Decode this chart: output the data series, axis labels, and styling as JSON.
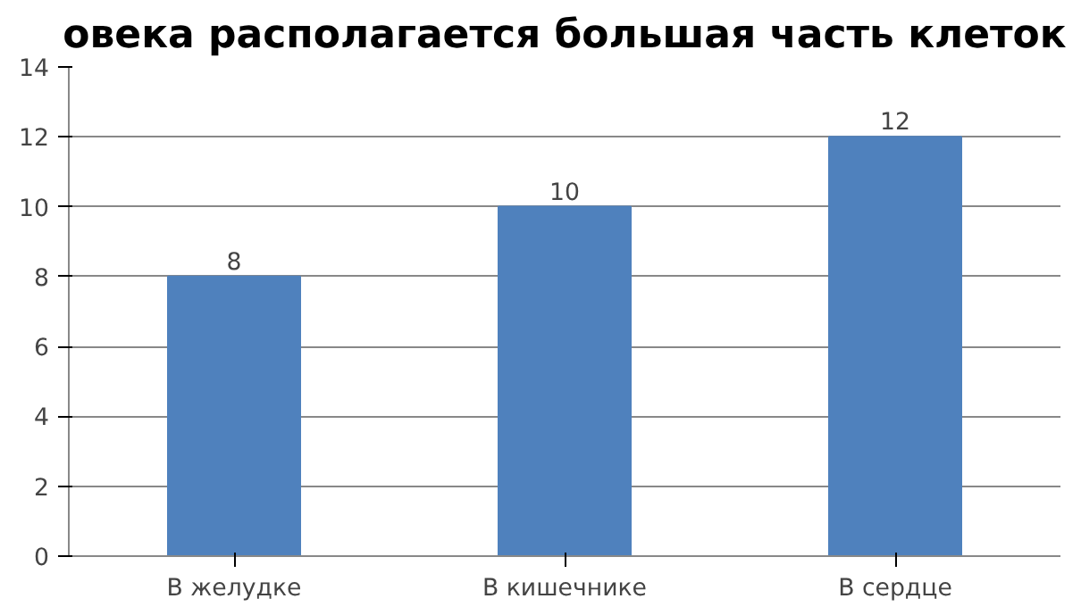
{
  "chart_data": {
    "type": "bar",
    "title": "овека располагается большая часть клеток",
    "categories": [
      "В желудке",
      "В кишечнике",
      "В сердце"
    ],
    "values": [
      8,
      10,
      12
    ],
    "color": "#4f81bd",
    "data_labels": true,
    "ylim": [
      0,
      14
    ],
    "yticks": [
      0,
      2,
      4,
      6,
      8,
      10,
      12,
      14
    ],
    "grid": "y"
  }
}
